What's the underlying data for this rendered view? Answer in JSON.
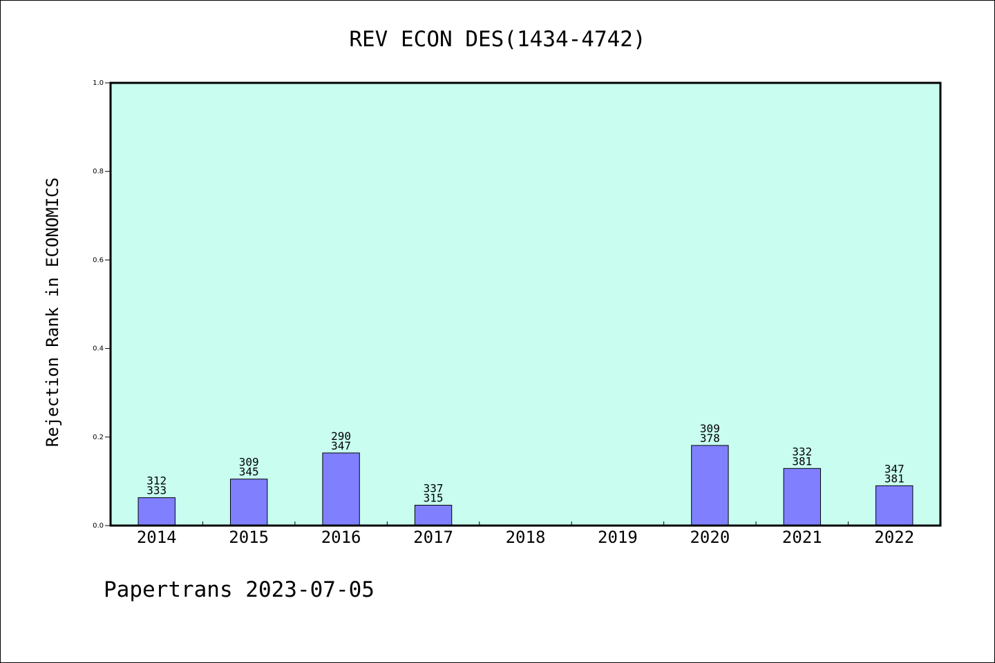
{
  "chart_data": {
    "type": "bar",
    "title": "REV ECON DES(1434-4742)",
    "xlabel": "",
    "ylabel": "Rejection Rank in ECONOMICS",
    "ylim": [
      0,
      1.0
    ],
    "yticks": [
      "0.0",
      "0.2",
      "0.4",
      "0.6",
      "0.8",
      "1.0"
    ],
    "categories": [
      "2014",
      "2015",
      "2016",
      "2017",
      "2018",
      "2019",
      "2020",
      "2021",
      "2022"
    ],
    "values": [
      0.063,
      0.105,
      0.164,
      0.046,
      null,
      null,
      0.181,
      0.129,
      0.09
    ],
    "labels_top": [
      "312",
      "309",
      "290",
      "337",
      "",
      "",
      "309",
      "332",
      "347"
    ],
    "labels_bottom": [
      "333",
      "345",
      "347",
      "315",
      "",
      "",
      "378",
      "381",
      "381"
    ],
    "grid": false,
    "colors": {
      "plot_bg": "#c8fdf0",
      "bar": "#8080ff",
      "bar_edge": "#000000"
    }
  },
  "footer": {
    "text": "Papertrans 2023-07-05"
  }
}
